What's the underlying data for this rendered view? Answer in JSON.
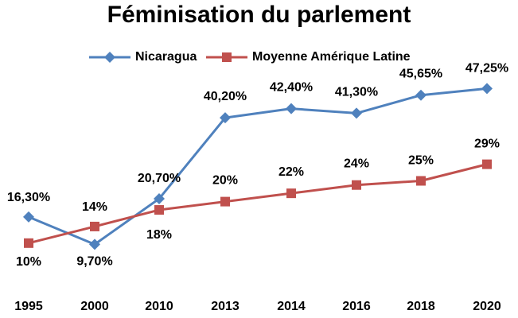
{
  "chart_data": {
    "type": "line",
    "title": "Féminisation du parlement",
    "xlabel": "",
    "ylabel": "",
    "categories": [
      "1995",
      "2000",
      "2010",
      "2013",
      "2014",
      "2016",
      "2018",
      "2020"
    ],
    "ylim": [
      0,
      55
    ],
    "grid": false,
    "legend_position": "top",
    "series": [
      {
        "name": "Nicaragua",
        "color": "#4F81BD",
        "marker": "diamond",
        "values": [
          16.3,
          9.7,
          20.7,
          40.2,
          42.4,
          41.3,
          45.65,
          47.25
        ],
        "labels": [
          "16,30%",
          "9,70%",
          "20,70%",
          "40,20%",
          "42,40%",
          "41,30%",
          "45,65%",
          "47,25%"
        ]
      },
      {
        "name": "Moyenne Amérique Latine",
        "color": "#C0504D",
        "marker": "square",
        "values": [
          10,
          14,
          18,
          20,
          22,
          24,
          25,
          29
        ],
        "labels": [
          "10%",
          "14%",
          "18%",
          "20%",
          "22%",
          "24%",
          "25%",
          "29%"
        ]
      }
    ]
  }
}
